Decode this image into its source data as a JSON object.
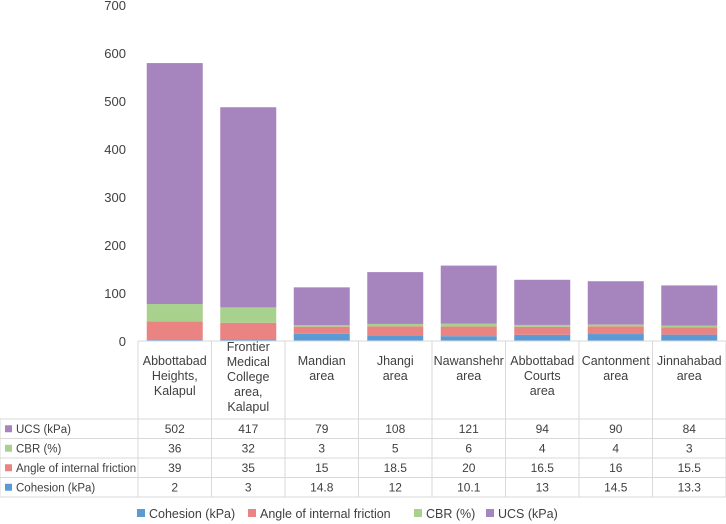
{
  "chart_data": {
    "type": "bar",
    "stacked": true,
    "title": "",
    "xlabel": "",
    "ylabel": "",
    "ylim": [
      0,
      700
    ],
    "yticks": [
      0,
      100,
      200,
      300,
      400,
      500,
      600,
      700
    ],
    "gridlines": false,
    "legend_position": "bottom",
    "categories": [
      [
        "Abbottabad",
        "Heights,",
        "Kalapul"
      ],
      [
        "Frontier",
        "Medical",
        "College",
        "area,",
        "Kalapul"
      ],
      [
        "Mandian",
        "area"
      ],
      [
        "Jhangi",
        "area"
      ],
      [
        "Nawanshehr",
        "area"
      ],
      [
        "Abbottabad",
        "Courts",
        "area"
      ],
      [
        "Cantonment",
        "area"
      ],
      [
        "Jinnahabad",
        "area"
      ]
    ],
    "series": [
      {
        "name": "Cohesion (kPa)",
        "color": "#5b9bd5",
        "values": [
          2,
          3,
          14.8,
          12,
          10.1,
          13,
          14.5,
          13.3
        ],
        "labels": [
          "2",
          "3",
          "14.8",
          "12",
          "10.1",
          "13",
          "14.5",
          "13.3"
        ]
      },
      {
        "name": "Angle of internal friction",
        "color": "#ea8482",
        "values": [
          39,
          35,
          15,
          18.5,
          20,
          16.5,
          16,
          15.5
        ],
        "labels": [
          "39",
          "35",
          "15",
          "18.5",
          "20",
          "16.5",
          "16",
          "15.5"
        ]
      },
      {
        "name": "CBR (%)",
        "color": "#a9d18e",
        "values": [
          36,
          32,
          3,
          5,
          6,
          4,
          4,
          3
        ],
        "labels": [
          "36",
          "32",
          "3",
          "5",
          "6",
          "4",
          "4",
          "3"
        ]
      },
      {
        "name": "UCS (kPa)",
        "color": "#a685bf",
        "values": [
          502,
          417,
          79,
          108,
          121,
          94,
          90,
          84
        ],
        "labels": [
          "502",
          "417",
          "79",
          "108",
          "121",
          "94",
          "90",
          "84"
        ]
      }
    ],
    "table_row_order": [
      "UCS (kPa)",
      "CBR (%)",
      "Angle of internal friction",
      "Cohesion (kPa)"
    ]
  }
}
